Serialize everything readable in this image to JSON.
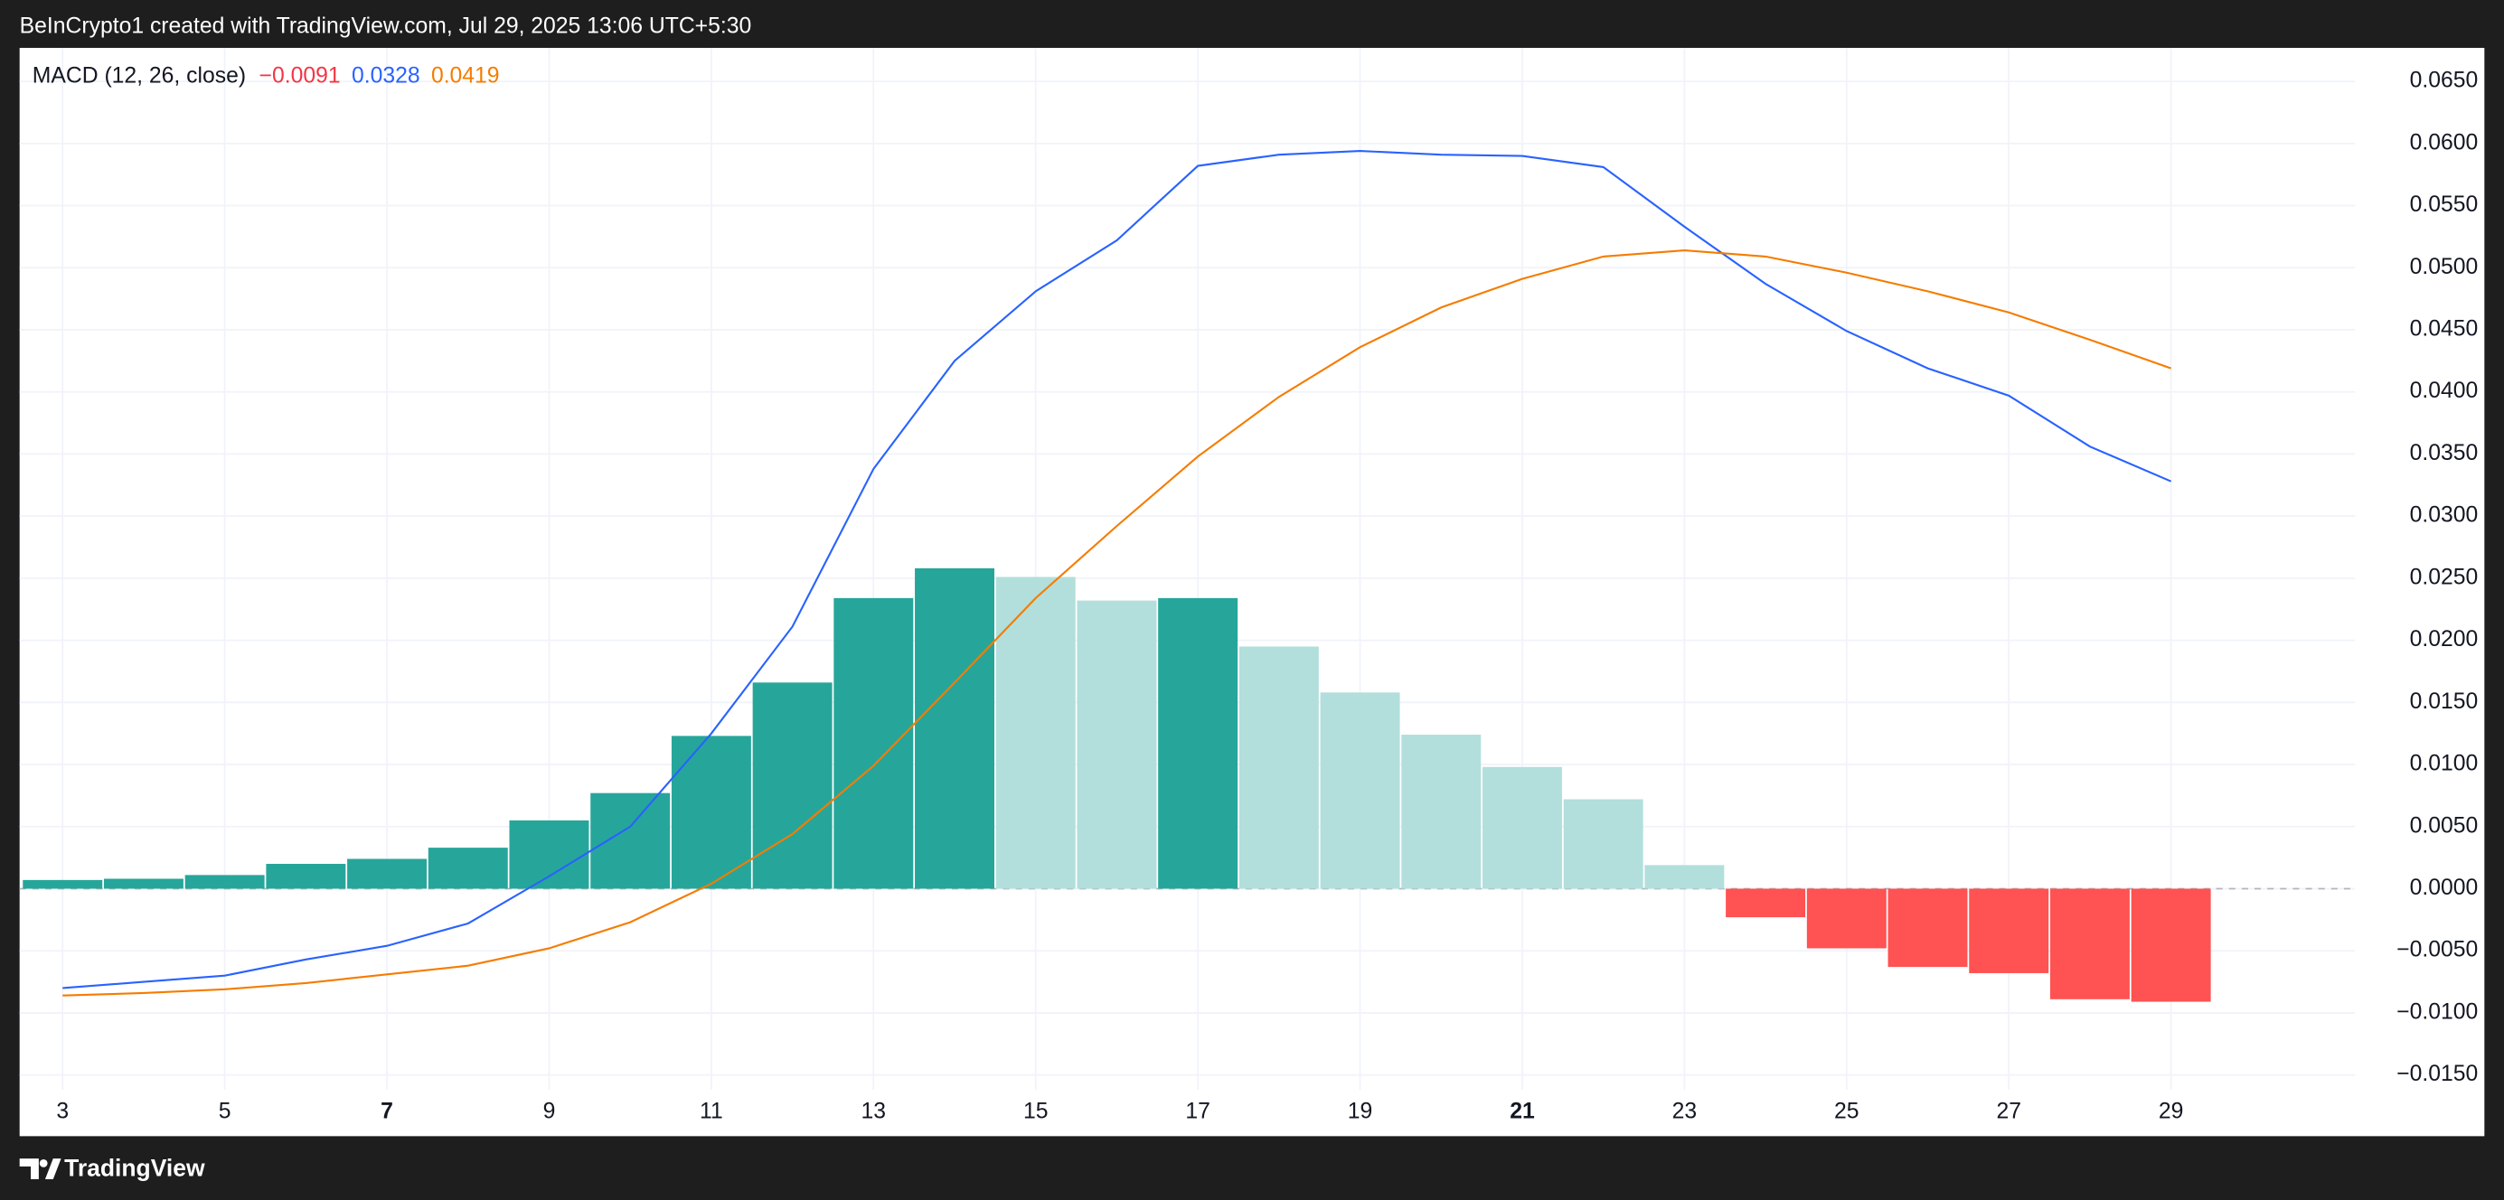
{
  "header": {
    "title": "BeInCrypto1 created with TradingView.com, Jul 29, 2025 13:06 UTC+5:30"
  },
  "footer": {
    "brand": "TradingView"
  },
  "chart_data": {
    "type": "combo",
    "legend": {
      "name": "MACD (12, 26, close)",
      "values": [
        -0.0091,
        0.0328,
        0.0419
      ],
      "value_labels": [
        "−0.0091",
        "0.0328",
        "0.0419"
      ],
      "colors": [
        "#f23645",
        "#2962ff",
        "#f57c00"
      ]
    },
    "x": [
      3,
      4,
      5,
      6,
      7,
      8,
      9,
      10,
      11,
      12,
      13,
      14,
      15,
      16,
      17,
      18,
      19,
      20,
      21,
      22,
      23,
      24,
      25,
      26,
      27,
      28,
      29
    ],
    "series": [
      {
        "type": "bar",
        "values": [
          0.0007,
          0.0008,
          0.0011,
          0.002,
          0.0024,
          0.0033,
          0.0055,
          0.0077,
          0.0123,
          0.0166,
          0.0234,
          0.0258,
          0.0251,
          0.0232,
          0.0234,
          0.0195,
          0.0158,
          0.0124,
          0.0098,
          0.0072,
          0.0019,
          -0.0023,
          -0.0048,
          -0.0063,
          -0.0068,
          -0.0089,
          -0.0091
        ],
        "colors": [
          "#26a69a",
          "#26a69a",
          "#26a69a",
          "#26a69a",
          "#26a69a",
          "#26a69a",
          "#26a69a",
          "#26a69a",
          "#26a69a",
          "#26a69a",
          "#26a69a",
          "#26a69a",
          "#b2dfdb",
          "#b2dfdb",
          "#26a69a",
          "#b2dfdb",
          "#b2dfdb",
          "#b2dfdb",
          "#b2dfdb",
          "#b2dfdb",
          "#b2dfdb",
          "#ff5252",
          "#ff5252",
          "#ff5252",
          "#ff5252",
          "#ff5252",
          "#ff5252"
        ]
      },
      {
        "type": "line",
        "color": "#2962ff",
        "values": [
          -0.008,
          -0.0075,
          -0.007,
          -0.0057,
          -0.0046,
          -0.0028,
          0.001,
          0.005,
          0.0125,
          0.0211,
          0.0338,
          0.0425,
          0.0481,
          0.0522,
          0.0582,
          0.0591,
          0.0594,
          0.0591,
          0.059,
          0.0581,
          0.0533,
          0.0487,
          0.0449,
          0.0419,
          0.0397,
          0.0356,
          0.0328
        ]
      },
      {
        "type": "line",
        "color": "#f57c00",
        "values": [
          -0.0086,
          -0.0084,
          -0.0081,
          -0.0076,
          -0.0069,
          -0.0062,
          -0.0048,
          -0.0027,
          0.0004,
          0.0044,
          0.0099,
          0.0166,
          0.0234,
          0.0292,
          0.0348,
          0.0396,
          0.0436,
          0.0468,
          0.0491,
          0.0509,
          0.0514,
          0.0509,
          0.0496,
          0.0481,
          0.0464,
          0.0442,
          0.0419
        ]
      }
    ],
    "xlim": [
      2.47,
      31.27
    ],
    "xticks": [
      3,
      5,
      7,
      9,
      11,
      13,
      15,
      17,
      19,
      21,
      23,
      25,
      27,
      29
    ],
    "xticks_bold": [
      7,
      21
    ],
    "ylim": [
      -0.0162,
      0.0677
    ],
    "yticks": [
      {
        "value": 0.065,
        "label": "0.0650"
      },
      {
        "value": 0.06,
        "label": "0.0600"
      },
      {
        "value": 0.055,
        "label": "0.0550"
      },
      {
        "value": 0.05,
        "label": "0.0500"
      },
      {
        "value": 0.045,
        "label": "0.0450"
      },
      {
        "value": 0.04,
        "label": "0.0400"
      },
      {
        "value": 0.035,
        "label": "0.0350"
      },
      {
        "value": 0.03,
        "label": "0.0300"
      },
      {
        "value": 0.025,
        "label": "0.0250"
      },
      {
        "value": 0.02,
        "label": "0.0200"
      },
      {
        "value": 0.015,
        "label": "0.0150"
      },
      {
        "value": 0.01,
        "label": "0.0100"
      },
      {
        "value": 0.005,
        "label": "0.0050"
      },
      {
        "value": 0,
        "label": "0.0000"
      },
      {
        "value": -0.005,
        "label": "−0.0050"
      },
      {
        "value": -0.01,
        "label": "−0.0100"
      },
      {
        "value": -0.015,
        "label": "−0.0150"
      }
    ],
    "grid": true
  }
}
